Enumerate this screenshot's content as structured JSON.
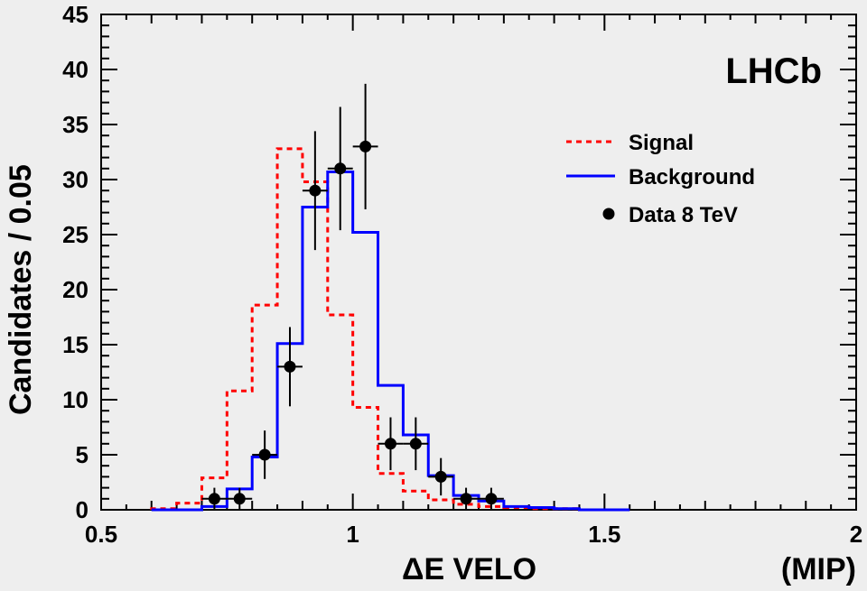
{
  "chart_data": {
    "type": "histogram",
    "experiment_label": "LHCb",
    "xlabel": "ΔE VELO",
    "xunit": "(MIP)",
    "ylabel": "Candidates / 0.05",
    "xlim": [
      0.5,
      2.0
    ],
    "ylim": [
      0,
      45
    ],
    "x_ticks": [
      "0.5",
      "1",
      "1.5",
      "2"
    ],
    "y_ticks": [
      "0",
      "5",
      "10",
      "15",
      "20",
      "25",
      "30",
      "35",
      "40",
      "45"
    ],
    "legend": {
      "placement": "top-right"
    },
    "bin_width": 0.05,
    "bin_edges": [
      0.6,
      0.65,
      0.7,
      0.75,
      0.8,
      0.85,
      0.9,
      0.95,
      1.0,
      1.05,
      1.1,
      1.15,
      1.2,
      1.25,
      1.3,
      1.35,
      1.4,
      1.45,
      1.5,
      1.55
    ],
    "series": [
      {
        "name": "Signal",
        "style": "dashed-step",
        "color": "#ff0000",
        "values": [
          0.1,
          0.6,
          2.9,
          10.8,
          18.6,
          32.8,
          29.8,
          17.7,
          9.3,
          3.3,
          1.7,
          0.9,
          0.5,
          0.3,
          0.2,
          0.1,
          0.1,
          0.0,
          0.0
        ]
      },
      {
        "name": "Background",
        "style": "solid-step",
        "color": "#0000ff",
        "values": [
          0.0,
          0.0,
          0.3,
          1.9,
          4.8,
          15.1,
          27.5,
          30.7,
          25.2,
          11.3,
          6.8,
          3.1,
          1.3,
          0.8,
          0.3,
          0.2,
          0.1,
          0.0,
          0.0
        ]
      },
      {
        "name": "Data 8 TeV",
        "style": "points",
        "color": "#000000",
        "x": [
          0.725,
          0.775,
          0.825,
          0.875,
          0.925,
          0.975,
          1.025,
          1.075,
          1.125,
          1.175,
          1.225,
          1.275
        ],
        "y": [
          1,
          1,
          5,
          13,
          29,
          31,
          33,
          6,
          6,
          3,
          1,
          1
        ],
        "err": [
          1.0,
          1.0,
          2.2,
          3.6,
          5.4,
          5.6,
          5.7,
          2.4,
          2.4,
          1.7,
          1.0,
          1.0
        ]
      }
    ]
  }
}
